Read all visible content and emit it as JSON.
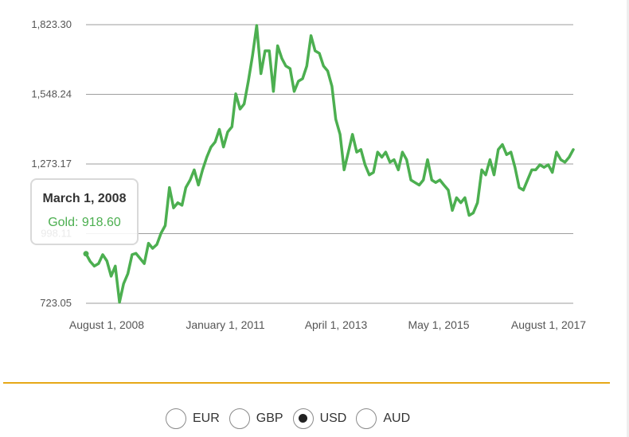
{
  "chart_data": {
    "type": "line",
    "x_ticks": [
      "August 1, 2008",
      "January 1, 2011",
      "April 1, 2013",
      "May 1, 2015",
      "August 1, 2017"
    ],
    "y_ticks": [
      "723.05",
      "998.11",
      "1,273.17",
      "1,548.24",
      "1,823.30"
    ],
    "y_tick_values": [
      723.05,
      998.11,
      1273.17,
      1548.24,
      1823.3
    ],
    "ylim": [
      723.05,
      1823.3
    ],
    "xlim": [
      "2008-03-01",
      "2017-12-01"
    ],
    "grid": true,
    "line_color": "#4caf50",
    "series": [
      {
        "name": "Gold",
        "points": [
          [
            "2008-03-01",
            918.6
          ],
          [
            "2008-04-01",
            888
          ],
          [
            "2008-05-01",
            870
          ],
          [
            "2008-06-01",
            880
          ],
          [
            "2008-07-01",
            915
          ],
          [
            "2008-08-01",
            890
          ],
          [
            "2008-09-01",
            830
          ],
          [
            "2008-10-01",
            870
          ],
          [
            "2008-11-01",
            727
          ],
          [
            "2008-12-01",
            800
          ],
          [
            "2009-01-01",
            840
          ],
          [
            "2009-02-01",
            915
          ],
          [
            "2009-03-01",
            920
          ],
          [
            "2009-04-01",
            900
          ],
          [
            "2009-05-01",
            880
          ],
          [
            "2009-06-01",
            960
          ],
          [
            "2009-07-01",
            940
          ],
          [
            "2009-08-01",
            955
          ],
          [
            "2009-09-01",
            1000
          ],
          [
            "2009-10-01",
            1030
          ],
          [
            "2009-11-01",
            1180
          ],
          [
            "2009-12-01",
            1100
          ],
          [
            "2010-01-01",
            1120
          ],
          [
            "2010-02-01",
            1110
          ],
          [
            "2010-03-01",
            1180
          ],
          [
            "2010-04-01",
            1210
          ],
          [
            "2010-05-01",
            1250
          ],
          [
            "2010-06-01",
            1190
          ],
          [
            "2010-07-01",
            1250
          ],
          [
            "2010-08-01",
            1300
          ],
          [
            "2010-09-01",
            1340
          ],
          [
            "2010-10-01",
            1360
          ],
          [
            "2010-11-01",
            1410
          ],
          [
            "2010-12-01",
            1340
          ],
          [
            "2011-01-01",
            1400
          ],
          [
            "2011-02-01",
            1420
          ],
          [
            "2011-03-01",
            1550
          ],
          [
            "2011-04-01",
            1490
          ],
          [
            "2011-05-01",
            1510
          ],
          [
            "2011-06-01",
            1600
          ],
          [
            "2011-07-01",
            1700
          ],
          [
            "2011-08-01",
            1820
          ],
          [
            "2011-09-01",
            1630
          ],
          [
            "2011-10-01",
            1720
          ],
          [
            "2011-11-01",
            1720
          ],
          [
            "2011-12-01",
            1560
          ],
          [
            "2012-01-01",
            1740
          ],
          [
            "2012-02-01",
            1690
          ],
          [
            "2012-03-01",
            1660
          ],
          [
            "2012-04-01",
            1650
          ],
          [
            "2012-05-01",
            1560
          ],
          [
            "2012-06-01",
            1600
          ],
          [
            "2012-07-01",
            1610
          ],
          [
            "2012-08-01",
            1660
          ],
          [
            "2012-09-01",
            1780
          ],
          [
            "2012-10-01",
            1720
          ],
          [
            "2012-11-01",
            1710
          ],
          [
            "2012-12-01",
            1660
          ],
          [
            "2013-01-01",
            1640
          ],
          [
            "2013-02-01",
            1580
          ],
          [
            "2013-03-01",
            1450
          ],
          [
            "2013-04-01",
            1390
          ],
          [
            "2013-05-01",
            1250
          ],
          [
            "2013-06-01",
            1320
          ],
          [
            "2013-07-01",
            1390
          ],
          [
            "2013-08-01",
            1320
          ],
          [
            "2013-09-01",
            1330
          ],
          [
            "2013-10-01",
            1270
          ],
          [
            "2013-11-01",
            1230
          ],
          [
            "2013-12-01",
            1240
          ],
          [
            "2014-01-01",
            1320
          ],
          [
            "2014-02-01",
            1300
          ],
          [
            "2014-03-01",
            1320
          ],
          [
            "2014-04-01",
            1280
          ],
          [
            "2014-05-01",
            1290
          ],
          [
            "2014-06-01",
            1250
          ],
          [
            "2014-07-01",
            1320
          ],
          [
            "2014-08-01",
            1290
          ],
          [
            "2014-09-01",
            1210
          ],
          [
            "2014-10-01",
            1200
          ],
          [
            "2014-11-01",
            1190
          ],
          [
            "2014-12-01",
            1210
          ],
          [
            "2015-01-01",
            1290
          ],
          [
            "2015-02-01",
            1210
          ],
          [
            "2015-03-01",
            1200
          ],
          [
            "2015-04-01",
            1210
          ],
          [
            "2015-05-01",
            1190
          ],
          [
            "2015-06-01",
            1170
          ],
          [
            "2015-07-01",
            1090
          ],
          [
            "2015-08-01",
            1140
          ],
          [
            "2015-09-01",
            1120
          ],
          [
            "2015-10-01",
            1140
          ],
          [
            "2015-11-01",
            1070
          ],
          [
            "2015-12-01",
            1080
          ],
          [
            "2016-01-01",
            1120
          ],
          [
            "2016-02-01",
            1250
          ],
          [
            "2016-03-01",
            1230
          ],
          [
            "2016-04-01",
            1290
          ],
          [
            "2016-05-01",
            1230
          ],
          [
            "2016-06-01",
            1330
          ],
          [
            "2016-07-01",
            1350
          ],
          [
            "2016-08-01",
            1310
          ],
          [
            "2016-09-01",
            1320
          ],
          [
            "2016-10-01",
            1260
          ],
          [
            "2016-11-01",
            1180
          ],
          [
            "2016-12-01",
            1170
          ],
          [
            "2017-01-01",
            1210
          ],
          [
            "2017-02-01",
            1250
          ],
          [
            "2017-03-01",
            1250
          ],
          [
            "2017-04-01",
            1270
          ],
          [
            "2017-05-01",
            1260
          ],
          [
            "2017-06-01",
            1270
          ],
          [
            "2017-07-01",
            1240
          ],
          [
            "2017-08-01",
            1320
          ],
          [
            "2017-09-01",
            1290
          ],
          [
            "2017-10-01",
            1280
          ],
          [
            "2017-11-01",
            1300
          ],
          [
            "2017-12-01",
            1330
          ]
        ]
      }
    ]
  },
  "tooltip": {
    "date": "March 1, 2008",
    "value_text": "Gold: 918.60"
  },
  "currency_options": [
    {
      "label": "EUR",
      "selected": false
    },
    {
      "label": "GBP",
      "selected": false
    },
    {
      "label": "USD",
      "selected": true
    },
    {
      "label": "AUD",
      "selected": false
    }
  ],
  "colors": {
    "line": "#4caf50",
    "divider": "#e6a817",
    "grid": "#9e9e9e"
  }
}
